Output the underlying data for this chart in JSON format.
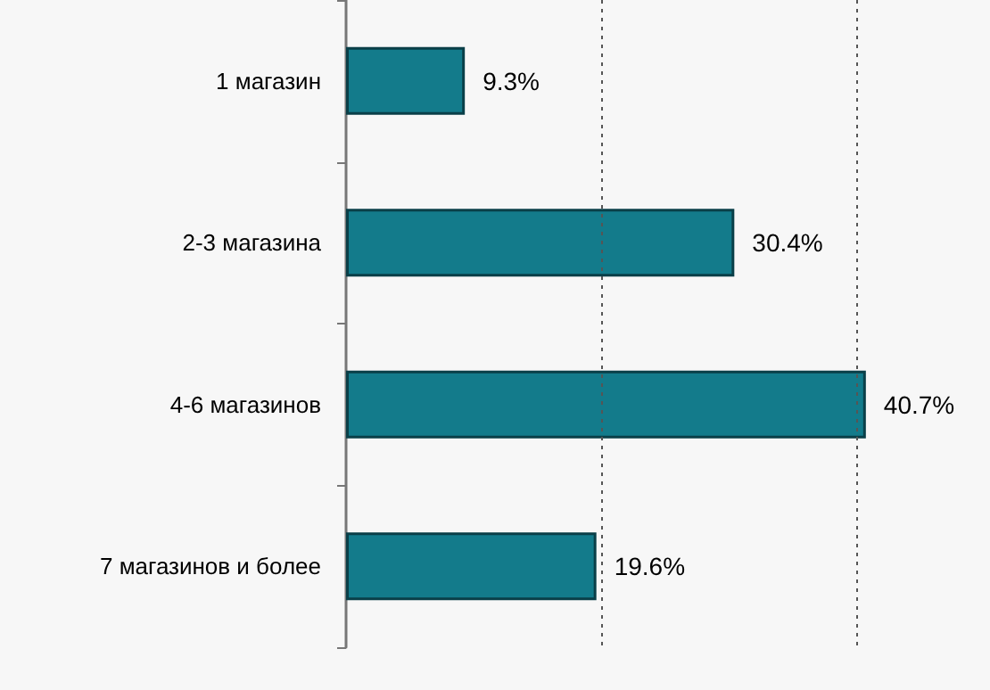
{
  "chart_data": {
    "type": "bar",
    "orientation": "horizontal",
    "categories": [
      "1 магазин",
      "2-3 магазина",
      "4-6 магазинов",
      "7 магазинов и более"
    ],
    "values": [
      9.3,
      30.4,
      40.7,
      19.6
    ],
    "value_labels": [
      "9.3%",
      "30.4%",
      "40.7%",
      "19.6%"
    ],
    "color": "#137b8b",
    "ref_lines": [
      {
        "axis": "x",
        "value": 20,
        "label": null,
        "line_style": "dotted",
        "color": "#555555"
      },
      {
        "axis": "x",
        "value": 40,
        "label": null,
        "line_style": "dotted",
        "color": "#555555"
      }
    ],
    "tick_labels": "y"
  }
}
